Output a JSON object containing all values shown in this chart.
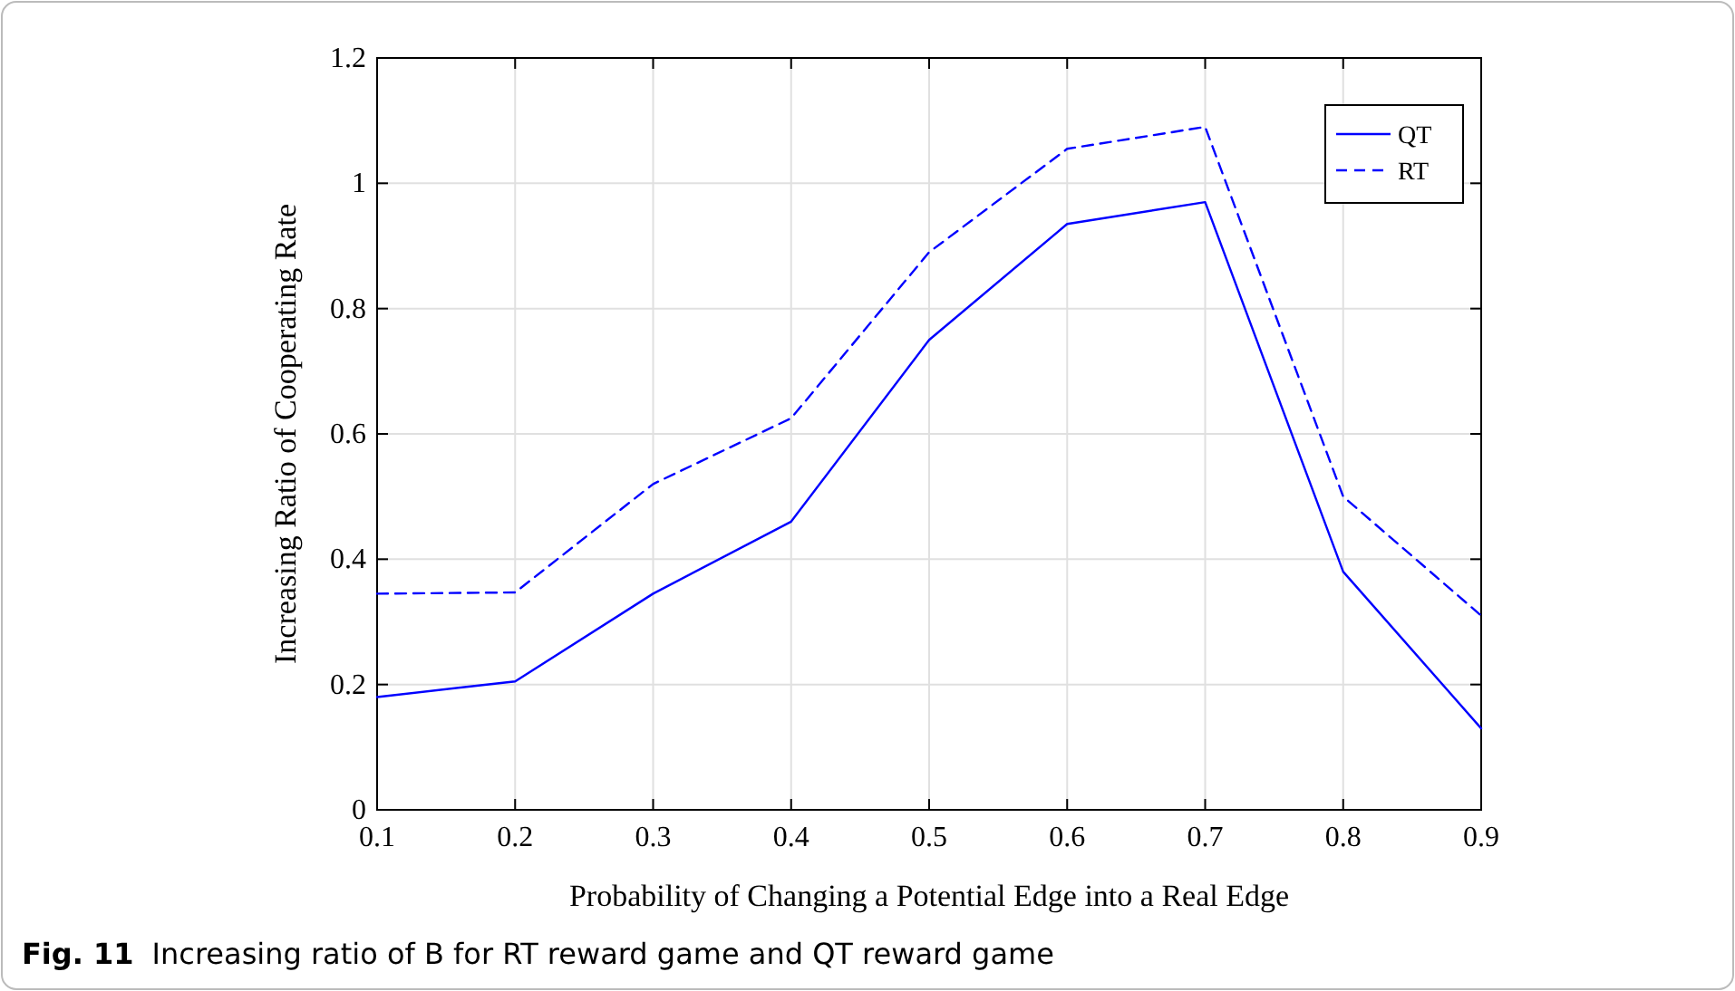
{
  "chart_data": {
    "type": "line",
    "xlabel": "Probability of Changing a Potential Edge into a Real Edge",
    "ylabel": "Increasing Ratio of Cooperating Rate",
    "x": [
      0.1,
      0.2,
      0.3,
      0.4,
      0.5,
      0.6,
      0.7,
      0.8,
      0.9
    ],
    "series": [
      {
        "name": "QT",
        "color": "#0000ff",
        "line_style": "solid",
        "values": [
          0.18,
          0.205,
          0.345,
          0.46,
          0.75,
          0.935,
          0.97,
          0.38,
          0.13
        ]
      },
      {
        "name": "RT",
        "color": "#0000ff",
        "line_style": "dashed",
        "values": [
          0.345,
          0.347,
          0.52,
          0.625,
          0.89,
          1.055,
          1.09,
          0.5,
          0.31
        ]
      }
    ],
    "xlim": [
      0.1,
      0.9
    ],
    "xticks": [
      0.1,
      0.2,
      0.3,
      0.4,
      0.5,
      0.6,
      0.7,
      0.8,
      0.9
    ],
    "ylim": [
      0,
      1.2
    ],
    "yticks": [
      0,
      0.2,
      0.4,
      0.6,
      0.8,
      1,
      1.2
    ],
    "grid": true,
    "legend": "top right",
    "marker": "none",
    "annotations": [
      "Fig. 11",
      "Increasing ratio of B for RT reward game and QT reward game"
    ]
  }
}
